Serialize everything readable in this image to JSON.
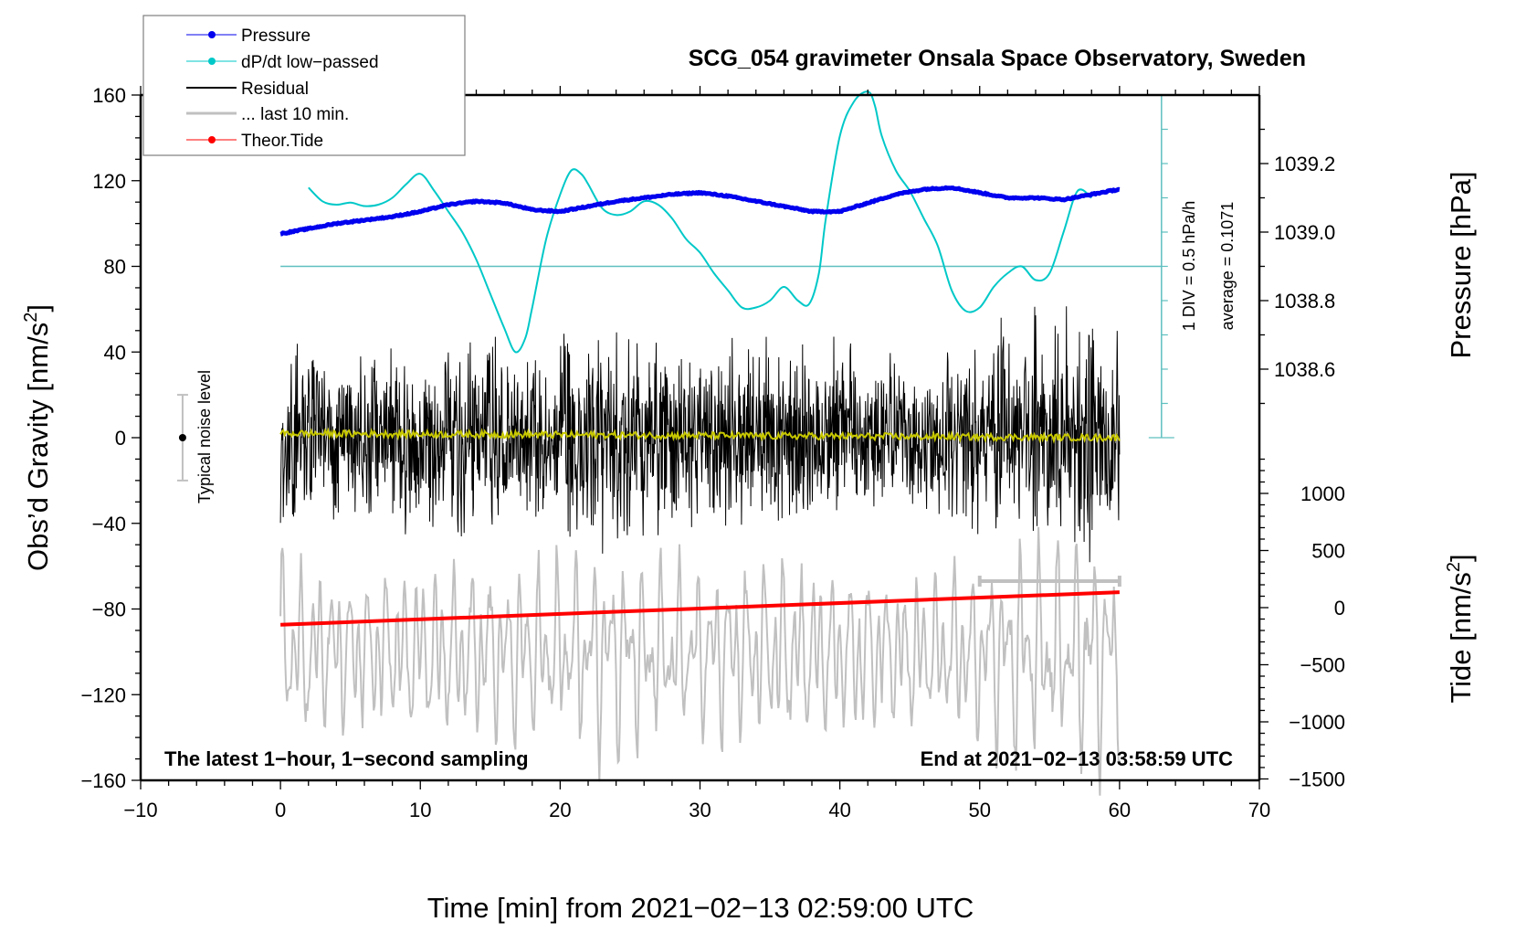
{
  "chart_data": {
    "type": "line",
    "title": "SCG_054 gravimeter Onsala Space Observatory, Sweden",
    "xlabel": "Time [min] from 2021−02−13 02:59:00 UTC",
    "ylabel_left": "Obs’d Gravity [nm/s",
    "ylabel_left_sup": "2",
    "ylabel_left_close": "]",
    "ylabel_right_pressure": "Pressure [hPa]",
    "ylabel_right_tide": "Tide [nm/s",
    "ylabel_right_tide_sup": "2",
    "ylabel_right_tide_close": "]",
    "xlim": [
      -10,
      70
    ],
    "ylim_gravity": [
      -160,
      160
    ],
    "x_ticks": [
      -10,
      0,
      10,
      20,
      30,
      40,
      50,
      60,
      70
    ],
    "x_tick_labels": [
      "−10",
      "0",
      "10",
      "20",
      "30",
      "40",
      "50",
      "60",
      "70"
    ],
    "y_ticks_gravity": [
      160,
      120,
      80,
      40,
      0,
      -40,
      -80,
      -120,
      -160
    ],
    "y_tick_labels_gravity": [
      "160",
      "120",
      "80",
      "40",
      "0",
      "−40",
      "−80",
      "−120",
      "−160"
    ],
    "pressure_ticks": [
      1039.2,
      1039.0,
      1038.8,
      1038.6
    ],
    "pressure_tick_labels": [
      "1039.2",
      "1039.0",
      "1038.8",
      "1038.6"
    ],
    "tide_ticks": [
      1000,
      500,
      0,
      -500,
      -1000,
      -1500
    ],
    "tide_tick_labels": [
      "1000",
      "500",
      "0",
      "−500",
      "−1000",
      "−1500"
    ],
    "grid": false,
    "legend_position": "top-left",
    "legend": [
      {
        "label": "Pressure",
        "color": "#0000ee",
        "marker": "dot"
      },
      {
        "label": "dP/dt low−passed",
        "color": "#00c8c8",
        "marker": "dot"
      },
      {
        "label": "Residual",
        "color": "#000000",
        "marker": "line"
      },
      {
        "label": "... last 10 min.",
        "color": "#bebebe",
        "marker": "line"
      },
      {
        "label": "Theor.Tide",
        "color": "#ff0000",
        "marker": "dot"
      }
    ],
    "series": [
      {
        "name": "Pressure",
        "unit": "hPa",
        "color": "#0000ee",
        "x": [
          0,
          2,
          4,
          6,
          8,
          10,
          12,
          14,
          16,
          18,
          20,
          22,
          24,
          26,
          28,
          30,
          32,
          34,
          36,
          38,
          40,
          42,
          44,
          46,
          48,
          50,
          52,
          54,
          56,
          58,
          60
        ],
        "values": [
          1038.995,
          1039.01,
          1039.025,
          1039.035,
          1039.045,
          1039.06,
          1039.08,
          1039.09,
          1039.085,
          1039.065,
          1039.06,
          1039.075,
          1039.09,
          1039.1,
          1039.11,
          1039.115,
          1039.105,
          1039.09,
          1039.075,
          1039.06,
          1039.06,
          1039.085,
          1039.11,
          1039.125,
          1039.13,
          1039.115,
          1039.1,
          1039.1,
          1039.095,
          1039.11,
          1039.125
        ]
      },
      {
        "name": "dP/dt low-passed",
        "unit": "hPa/h",
        "zero_line_gravity": 80,
        "div_value": 0.5,
        "average": 0.1071,
        "color": "#00c8c8",
        "x": [
          2,
          3,
          4,
          5,
          6,
          7,
          8,
          9,
          10,
          11,
          12,
          13,
          14,
          15,
          16,
          16.8,
          17.5,
          18,
          19,
          20,
          20.8,
          21.5,
          22,
          23,
          24,
          25,
          26,
          27,
          28,
          29,
          30,
          31,
          32,
          33,
          34,
          35,
          36,
          37,
          37.8,
          38.5,
          39,
          40,
          41,
          42,
          42.5,
          43,
          44,
          45,
          46,
          47,
          48,
          49,
          50,
          51,
          52,
          53,
          54,
          55,
          56,
          57,
          58
        ],
        "values": [
          1.15,
          0.95,
          0.9,
          0.93,
          0.88,
          0.9,
          1.0,
          1.2,
          1.35,
          1.1,
          0.8,
          0.5,
          0.1,
          -0.4,
          -0.9,
          -1.25,
          -1.05,
          -0.6,
          0.4,
          1.05,
          1.4,
          1.35,
          1.2,
          0.85,
          0.75,
          0.8,
          0.95,
          0.9,
          0.7,
          0.4,
          0.2,
          -0.1,
          -0.35,
          -0.6,
          -0.6,
          -0.5,
          -0.3,
          -0.5,
          -0.55,
          -0.1,
          0.7,
          1.9,
          2.4,
          2.55,
          2.35,
          1.9,
          1.4,
          1.1,
          0.7,
          0.3,
          -0.35,
          -0.65,
          -0.6,
          -0.3,
          -0.1,
          0.0,
          -0.2,
          -0.1,
          0.5,
          1.1,
          1.0
        ]
      },
      {
        "name": "Residual",
        "unit": "nm/s2",
        "color": "#000000",
        "description": "1-second sampled residual, oscillating roughly between −60 and +75 nm/s2 over 0–60 min",
        "amplitude_envelope": {
          "x": [
            0,
            5,
            10,
            15,
            20,
            23,
            25,
            30,
            35,
            40,
            45,
            50,
            53,
            55,
            58,
            60
          ],
          "peak": [
            55,
            45,
            50,
            55,
            55,
            65,
            60,
            50,
            55,
            50,
            45,
            50,
            70,
            60,
            75,
            65
          ]
        }
      },
      {
        "name": "Residual smoothed",
        "unit": "nm/s2",
        "color": "#c8c800",
        "x": [
          0,
          60
        ],
        "values": [
          2,
          0
        ]
      },
      {
        "name": "... last 10 min.",
        "unit": "nm/s2",
        "color": "#bebebe",
        "x_range": [
          0,
          60
        ],
        "note": "last 10 minutes of residual replotted stretched over the full hour, centred near −100 nm/s2",
        "marker_bar_x": [
          50,
          60
        ],
        "marker_bar_gravity": -67
      },
      {
        "name": "Theor.Tide",
        "unit": "nm/s2",
        "color": "#ff0000",
        "x": [
          0,
          60
        ],
        "values": [
          -150,
          135
        ]
      }
    ],
    "annotations": [
      {
        "text": "Typical noise level",
        "x": -7,
        "value": 0,
        "error": 20
      },
      {
        "text": "1 DIV = 0.5 hPa/h"
      },
      {
        "text": "average = 0.1071"
      },
      {
        "text": "The latest 1−hour, 1−second sampling",
        "position": "bottom-left"
      },
      {
        "text": "End at 2021−02−13 03:58:59 UTC",
        "position": "bottom-right"
      }
    ]
  },
  "colors": {
    "pressure": "#0000ee",
    "dpdt": "#00c8c8",
    "dpdt_axis": "#5fbfbf",
    "residual": "#000000",
    "smoothed": "#c8c800",
    "last10": "#c0c0c0",
    "tide": "#ff0000"
  }
}
